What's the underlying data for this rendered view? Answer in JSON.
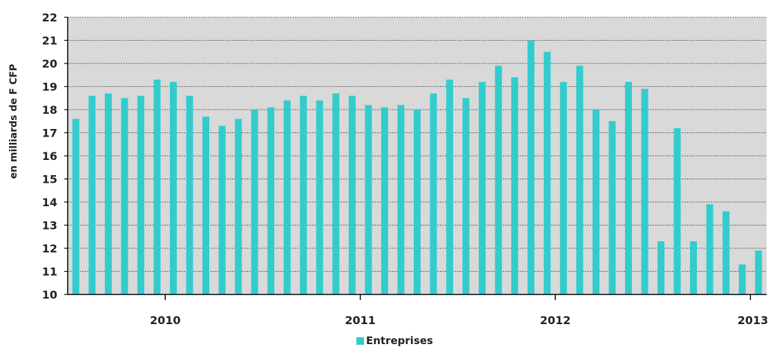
{
  "chart_data": {
    "type": "bar",
    "ylabel": "en  milliards de F CFP",
    "ylim": [
      10,
      22
    ],
    "yticks": [
      10,
      11,
      12,
      13,
      14,
      15,
      16,
      17,
      18,
      19,
      20,
      21,
      22
    ],
    "grid": "horizontal dashed",
    "background": "#d9d9d9",
    "year_labels": [
      "2010",
      "2011",
      "2012",
      "2013"
    ],
    "legend": {
      "position": "bottom-center"
    },
    "series": [
      {
        "name": "Entreprises",
        "color": "#33cccc",
        "values": [
          17.6,
          18.6,
          18.7,
          18.5,
          18.6,
          19.3,
          19.2,
          18.6,
          17.7,
          17.3,
          17.6,
          18.0,
          18.1,
          18.4,
          18.6,
          18.4,
          18.7,
          18.6,
          18.2,
          18.1,
          18.2,
          18.0,
          18.7,
          19.3,
          18.5,
          19.2,
          19.9,
          19.4,
          21.0,
          20.5,
          19.2,
          19.9,
          18.0,
          17.5,
          19.2,
          18.9,
          12.3,
          17.2,
          12.3,
          13.9,
          13.6,
          11.3,
          11.9
        ]
      }
    ]
  }
}
